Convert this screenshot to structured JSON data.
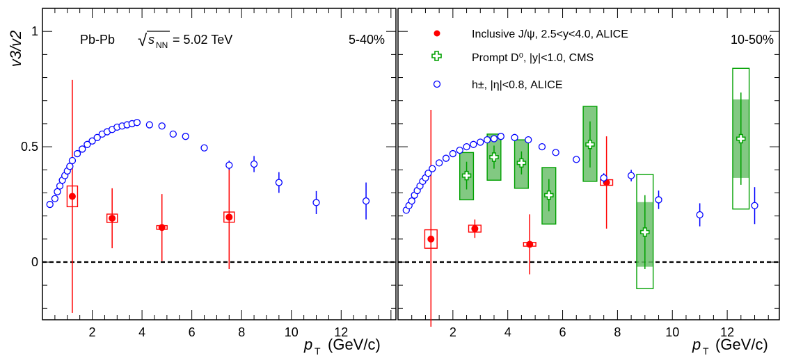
{
  "chart_data": [
    {
      "type": "scatter",
      "panel": "left",
      "xlabel": "p",
      "xlabel_sub": "T",
      "xlabel_unit": "(GeV/c)",
      "ylabel": "v3/v2",
      "xlim": [
        0,
        14.2
      ],
      "ylim": [
        -0.25,
        1.1
      ],
      "x_ticks": [
        "2",
        "4",
        "6",
        "8",
        "10",
        "12"
      ],
      "y_ticks": [
        "0",
        "0.5",
        "1"
      ],
      "zero_line": true,
      "annotations": {
        "system": "Pb-Pb",
        "energy": "= 5.02 TeV",
        "sqrt": "√",
        "s": "s",
        "nn": "NN",
        "centrality": "5-40%"
      },
      "series": [
        {
          "key": "jpsi",
          "color": "#ff0000",
          "marker": "filled-circle",
          "points": [
            {
              "x": 1.2,
              "y": 0.285,
              "err": 0.505,
              "sys": 0.045,
              "bw": 0.42
            },
            {
              "x": 2.8,
              "y": 0.19,
              "err": 0.13,
              "sys": 0.018,
              "bw": 0.42
            },
            {
              "x": 4.8,
              "y": 0.15,
              "err": 0.145,
              "sys": 0.008,
              "bw": 0.42
            },
            {
              "x": 7.5,
              "y": 0.195,
              "err": 0.225,
              "sys": 0.022,
              "bw": 0.42
            }
          ]
        },
        {
          "key": "hadron",
          "color": "#0000ff",
          "marker": "open-circle",
          "points": [
            {
              "x": 0.3,
              "y": 0.25
            },
            {
              "x": 0.5,
              "y": 0.275
            },
            {
              "x": 0.6,
              "y": 0.305
            },
            {
              "x": 0.7,
              "y": 0.33
            },
            {
              "x": 0.8,
              "y": 0.355
            },
            {
              "x": 0.9,
              "y": 0.375
            },
            {
              "x": 1.0,
              "y": 0.395
            },
            {
              "x": 1.1,
              "y": 0.415
            },
            {
              "x": 1.2,
              "y": 0.44
            },
            {
              "x": 1.4,
              "y": 0.47
            },
            {
              "x": 1.6,
              "y": 0.49
            },
            {
              "x": 1.8,
              "y": 0.51
            },
            {
              "x": 2.0,
              "y": 0.525
            },
            {
              "x": 2.2,
              "y": 0.54
            },
            {
              "x": 2.4,
              "y": 0.555
            },
            {
              "x": 2.6,
              "y": 0.565
            },
            {
              "x": 2.8,
              "y": 0.575
            },
            {
              "x": 3.0,
              "y": 0.585
            },
            {
              "x": 3.2,
              "y": 0.59
            },
            {
              "x": 3.4,
              "y": 0.595
            },
            {
              "x": 3.6,
              "y": 0.6
            },
            {
              "x": 3.8,
              "y": 0.605
            },
            {
              "x": 4.3,
              "y": 0.595
            },
            {
              "x": 4.8,
              "y": 0.59
            },
            {
              "x": 5.25,
              "y": 0.555
            },
            {
              "x": 5.75,
              "y": 0.545
            },
            {
              "x": 6.5,
              "y": 0.495
            },
            {
              "x": 7.5,
              "y": 0.42,
              "err": 0.02
            },
            {
              "x": 8.5,
              "y": 0.425,
              "err": 0.035
            },
            {
              "x": 9.5,
              "y": 0.345,
              "err": 0.045
            },
            {
              "x": 11.0,
              "y": 0.258,
              "err": 0.05
            },
            {
              "x": 13.0,
              "y": 0.265,
              "err": 0.08
            }
          ]
        }
      ]
    },
    {
      "type": "scatter",
      "panel": "right",
      "xlabel": "p",
      "xlabel_sub": "T",
      "xlabel_unit": "(GeV/c)",
      "xlim": [
        0,
        13.9
      ],
      "ylim": [
        -0.25,
        1.1
      ],
      "x_ticks": [
        "2",
        "4",
        "6",
        "8",
        "10",
        "12"
      ],
      "zero_line": true,
      "annotations": {
        "centrality": "10-50%"
      },
      "legend": {
        "position": "top-center",
        "entries": [
          {
            "key": "jpsi",
            "label": "Inclusive J/ψ, 2.5<y<4.0, ALICE"
          },
          {
            "key": "dzero",
            "label": "Prompt D⁰, |y|<1.0, CMS"
          },
          {
            "key": "hadron",
            "label": "h±, |η|<0.8, ALICE"
          }
        ]
      },
      "series": [
        {
          "key": "jpsi",
          "color": "#ff0000",
          "marker": "filled-circle",
          "points": [
            {
              "x": 1.2,
              "y": 0.1,
              "err_up": 0.56,
              "err_dn": 0.38,
              "sys": 0.04,
              "bw": 0.45
            },
            {
              "x": 2.8,
              "y": 0.145,
              "err": 0.04,
              "sys": 0.015,
              "bw": 0.45
            },
            {
              "x": 4.8,
              "y": 0.077,
              "err": 0.13,
              "sys": 0.008,
              "bw": 0.45
            },
            {
              "x": 7.6,
              "y": 0.345,
              "err": 0.2,
              "sys": 0.012,
              "bw": 0.45
            }
          ]
        },
        {
          "key": "dzero",
          "color": "#00a000",
          "marker": "open-cross",
          "points": [
            {
              "x": 2.5,
              "y": 0.375,
              "err": 0.06,
              "sys_lo": 0.27,
              "sys_hi": 0.475,
              "bw": 0.5
            },
            {
              "x": 3.5,
              "y": 0.455,
              "err": 0.05,
              "sys_lo": 0.355,
              "sys_hi": 0.555,
              "bw": 0.5
            },
            {
              "x": 4.5,
              "y": 0.43,
              "err": 0.05,
              "sys_lo": 0.32,
              "sys_hi": 0.53,
              "bw": 0.5
            },
            {
              "x": 5.5,
              "y": 0.29,
              "err": 0.07,
              "sys_lo": 0.165,
              "sys_hi": 0.41,
              "bw": 0.5
            },
            {
              "x": 7.0,
              "y": 0.51,
              "err": 0.1,
              "sys_lo": 0.35,
              "sys_hi": 0.675,
              "bw": 0.5
            },
            {
              "x": 9.0,
              "y": 0.13,
              "err_up": 0.16,
              "err_dn": 0.16,
              "sys_lo": -0.115,
              "sys_hi": 0.38,
              "fill_lo": -0.02,
              "fill_hi": 0.26,
              "bw": 0.6
            },
            {
              "x": 12.5,
              "y": 0.535,
              "err": 0.2,
              "sys_lo": 0.23,
              "sys_hi": 0.84,
              "fill_lo": 0.365,
              "fill_hi": 0.705,
              "bw": 0.6
            }
          ]
        },
        {
          "key": "hadron",
          "color": "#0000ff",
          "marker": "open-circle",
          "points": [
            {
              "x": 0.3,
              "y": 0.225
            },
            {
              "x": 0.4,
              "y": 0.245
            },
            {
              "x": 0.5,
              "y": 0.265
            },
            {
              "x": 0.6,
              "y": 0.29
            },
            {
              "x": 0.7,
              "y": 0.31
            },
            {
              "x": 0.8,
              "y": 0.33
            },
            {
              "x": 0.9,
              "y": 0.35
            },
            {
              "x": 1.0,
              "y": 0.365
            },
            {
              "x": 1.1,
              "y": 0.385
            },
            {
              "x": 1.25,
              "y": 0.405
            },
            {
              "x": 1.5,
              "y": 0.43
            },
            {
              "x": 1.75,
              "y": 0.45
            },
            {
              "x": 2.0,
              "y": 0.47
            },
            {
              "x": 2.25,
              "y": 0.485
            },
            {
              "x": 2.5,
              "y": 0.5
            },
            {
              "x": 2.75,
              "y": 0.51
            },
            {
              "x": 3.0,
              "y": 0.52
            },
            {
              "x": 3.25,
              "y": 0.53
            },
            {
              "x": 3.5,
              "y": 0.535
            },
            {
              "x": 3.75,
              "y": 0.545
            },
            {
              "x": 4.25,
              "y": 0.54
            },
            {
              "x": 4.75,
              "y": 0.53
            },
            {
              "x": 5.25,
              "y": 0.5
            },
            {
              "x": 5.75,
              "y": 0.475
            },
            {
              "x": 6.5,
              "y": 0.445
            },
            {
              "x": 7.5,
              "y": 0.365,
              "err": 0.02
            },
            {
              "x": 8.5,
              "y": 0.375,
              "err": 0.025
            },
            {
              "x": 9.5,
              "y": 0.27,
              "err": 0.04
            },
            {
              "x": 11.0,
              "y": 0.205,
              "err": 0.05
            },
            {
              "x": 13.0,
              "y": 0.245,
              "err": 0.08
            }
          ]
        }
      ]
    }
  ]
}
